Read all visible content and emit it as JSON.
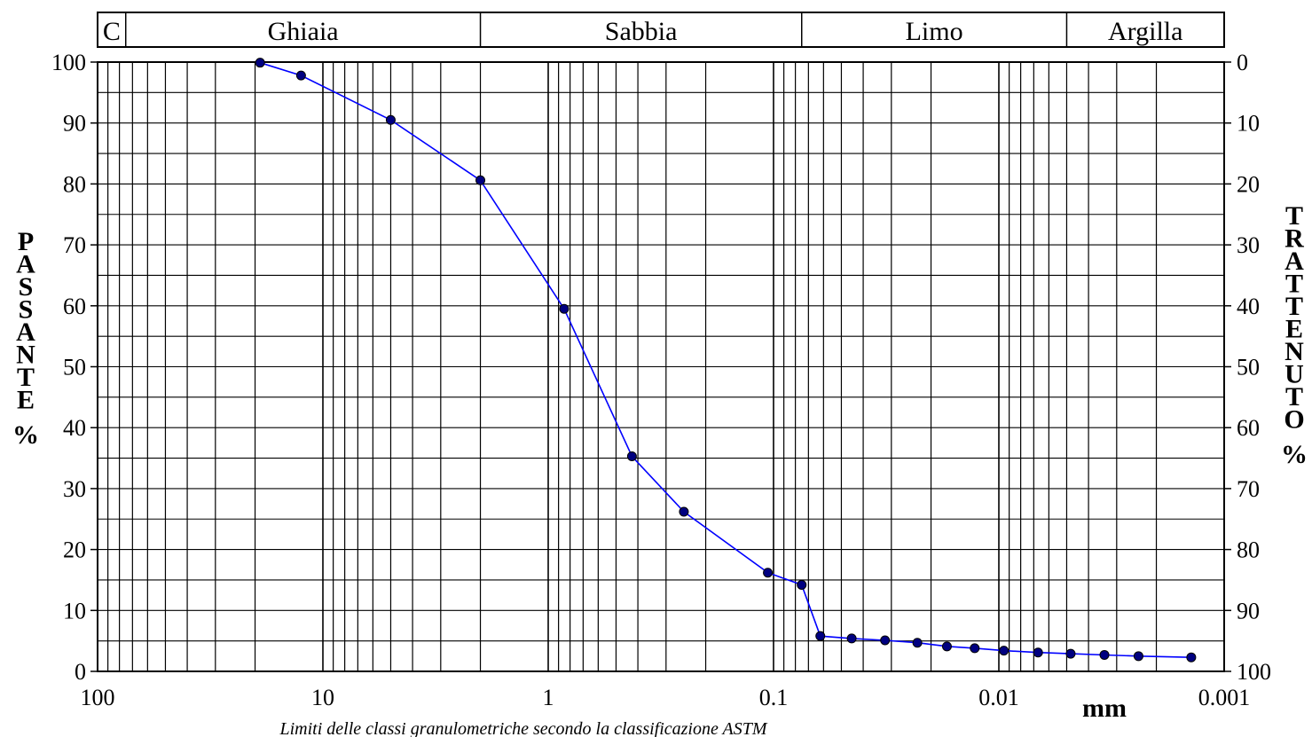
{
  "chart_data": {
    "type": "line",
    "title": "",
    "xlabel": "mm",
    "ylabel_left": "PASSANTE %",
    "ylabel_right": "TRATTENUTO %",
    "x_scale": "log",
    "x_reversed": true,
    "xlim": [
      100,
      0.001
    ],
    "ylim": [
      0,
      100
    ],
    "grid": true,
    "x_tick_labels": [
      "100",
      "10",
      "1",
      "0.1",
      "0.01",
      "0.001"
    ],
    "y_left_tick_labels": [
      "0",
      "10",
      "20",
      "30",
      "40",
      "50",
      "60",
      "70",
      "80",
      "90",
      "100"
    ],
    "y_right_tick_labels": [
      "100",
      "90",
      "80",
      "70",
      "60",
      "50",
      "40",
      "30",
      "20",
      "10",
      "0"
    ],
    "classification_bands": [
      {
        "label": "C",
        "from": 100,
        "to": 75
      },
      {
        "label": "Ghiaia",
        "from": 75,
        "to": 2
      },
      {
        "label": "Sabbia",
        "from": 2,
        "to": 0.075
      },
      {
        "label": "Limo",
        "from": 0.075,
        "to": 0.005
      },
      {
        "label": "Argilla",
        "from": 0.005,
        "to": 0.001
      }
    ],
    "series": [
      {
        "color": "#0000ff",
        "marker_color": "#000080",
        "points": [
          {
            "x": 19,
            "y": 99.9
          },
          {
            "x": 12.5,
            "y": 97.8
          },
          {
            "x": 5,
            "y": 90.5
          },
          {
            "x": 2,
            "y": 80.6
          },
          {
            "x": 0.85,
            "y": 59.5
          },
          {
            "x": 0.425,
            "y": 35.3
          },
          {
            "x": 0.25,
            "y": 26.2
          },
          {
            "x": 0.106,
            "y": 16.2
          },
          {
            "x": 0.075,
            "y": 14.2
          },
          {
            "x": 0.062,
            "y": 5.8
          },
          {
            "x": 0.045,
            "y": 5.4
          },
          {
            "x": 0.032,
            "y": 5.1
          },
          {
            "x": 0.023,
            "y": 4.7
          },
          {
            "x": 0.017,
            "y": 4.1
          },
          {
            "x": 0.0128,
            "y": 3.8
          },
          {
            "x": 0.0095,
            "y": 3.4
          },
          {
            "x": 0.0067,
            "y": 3.1
          },
          {
            "x": 0.0048,
            "y": 2.9
          },
          {
            "x": 0.0034,
            "y": 2.7
          },
          {
            "x": 0.0024,
            "y": 2.5
          },
          {
            "x": 0.0014,
            "y": 2.3
          }
        ]
      }
    ],
    "note": "Limiti delle classi granulometriche secondo la classificazione ASTM"
  }
}
